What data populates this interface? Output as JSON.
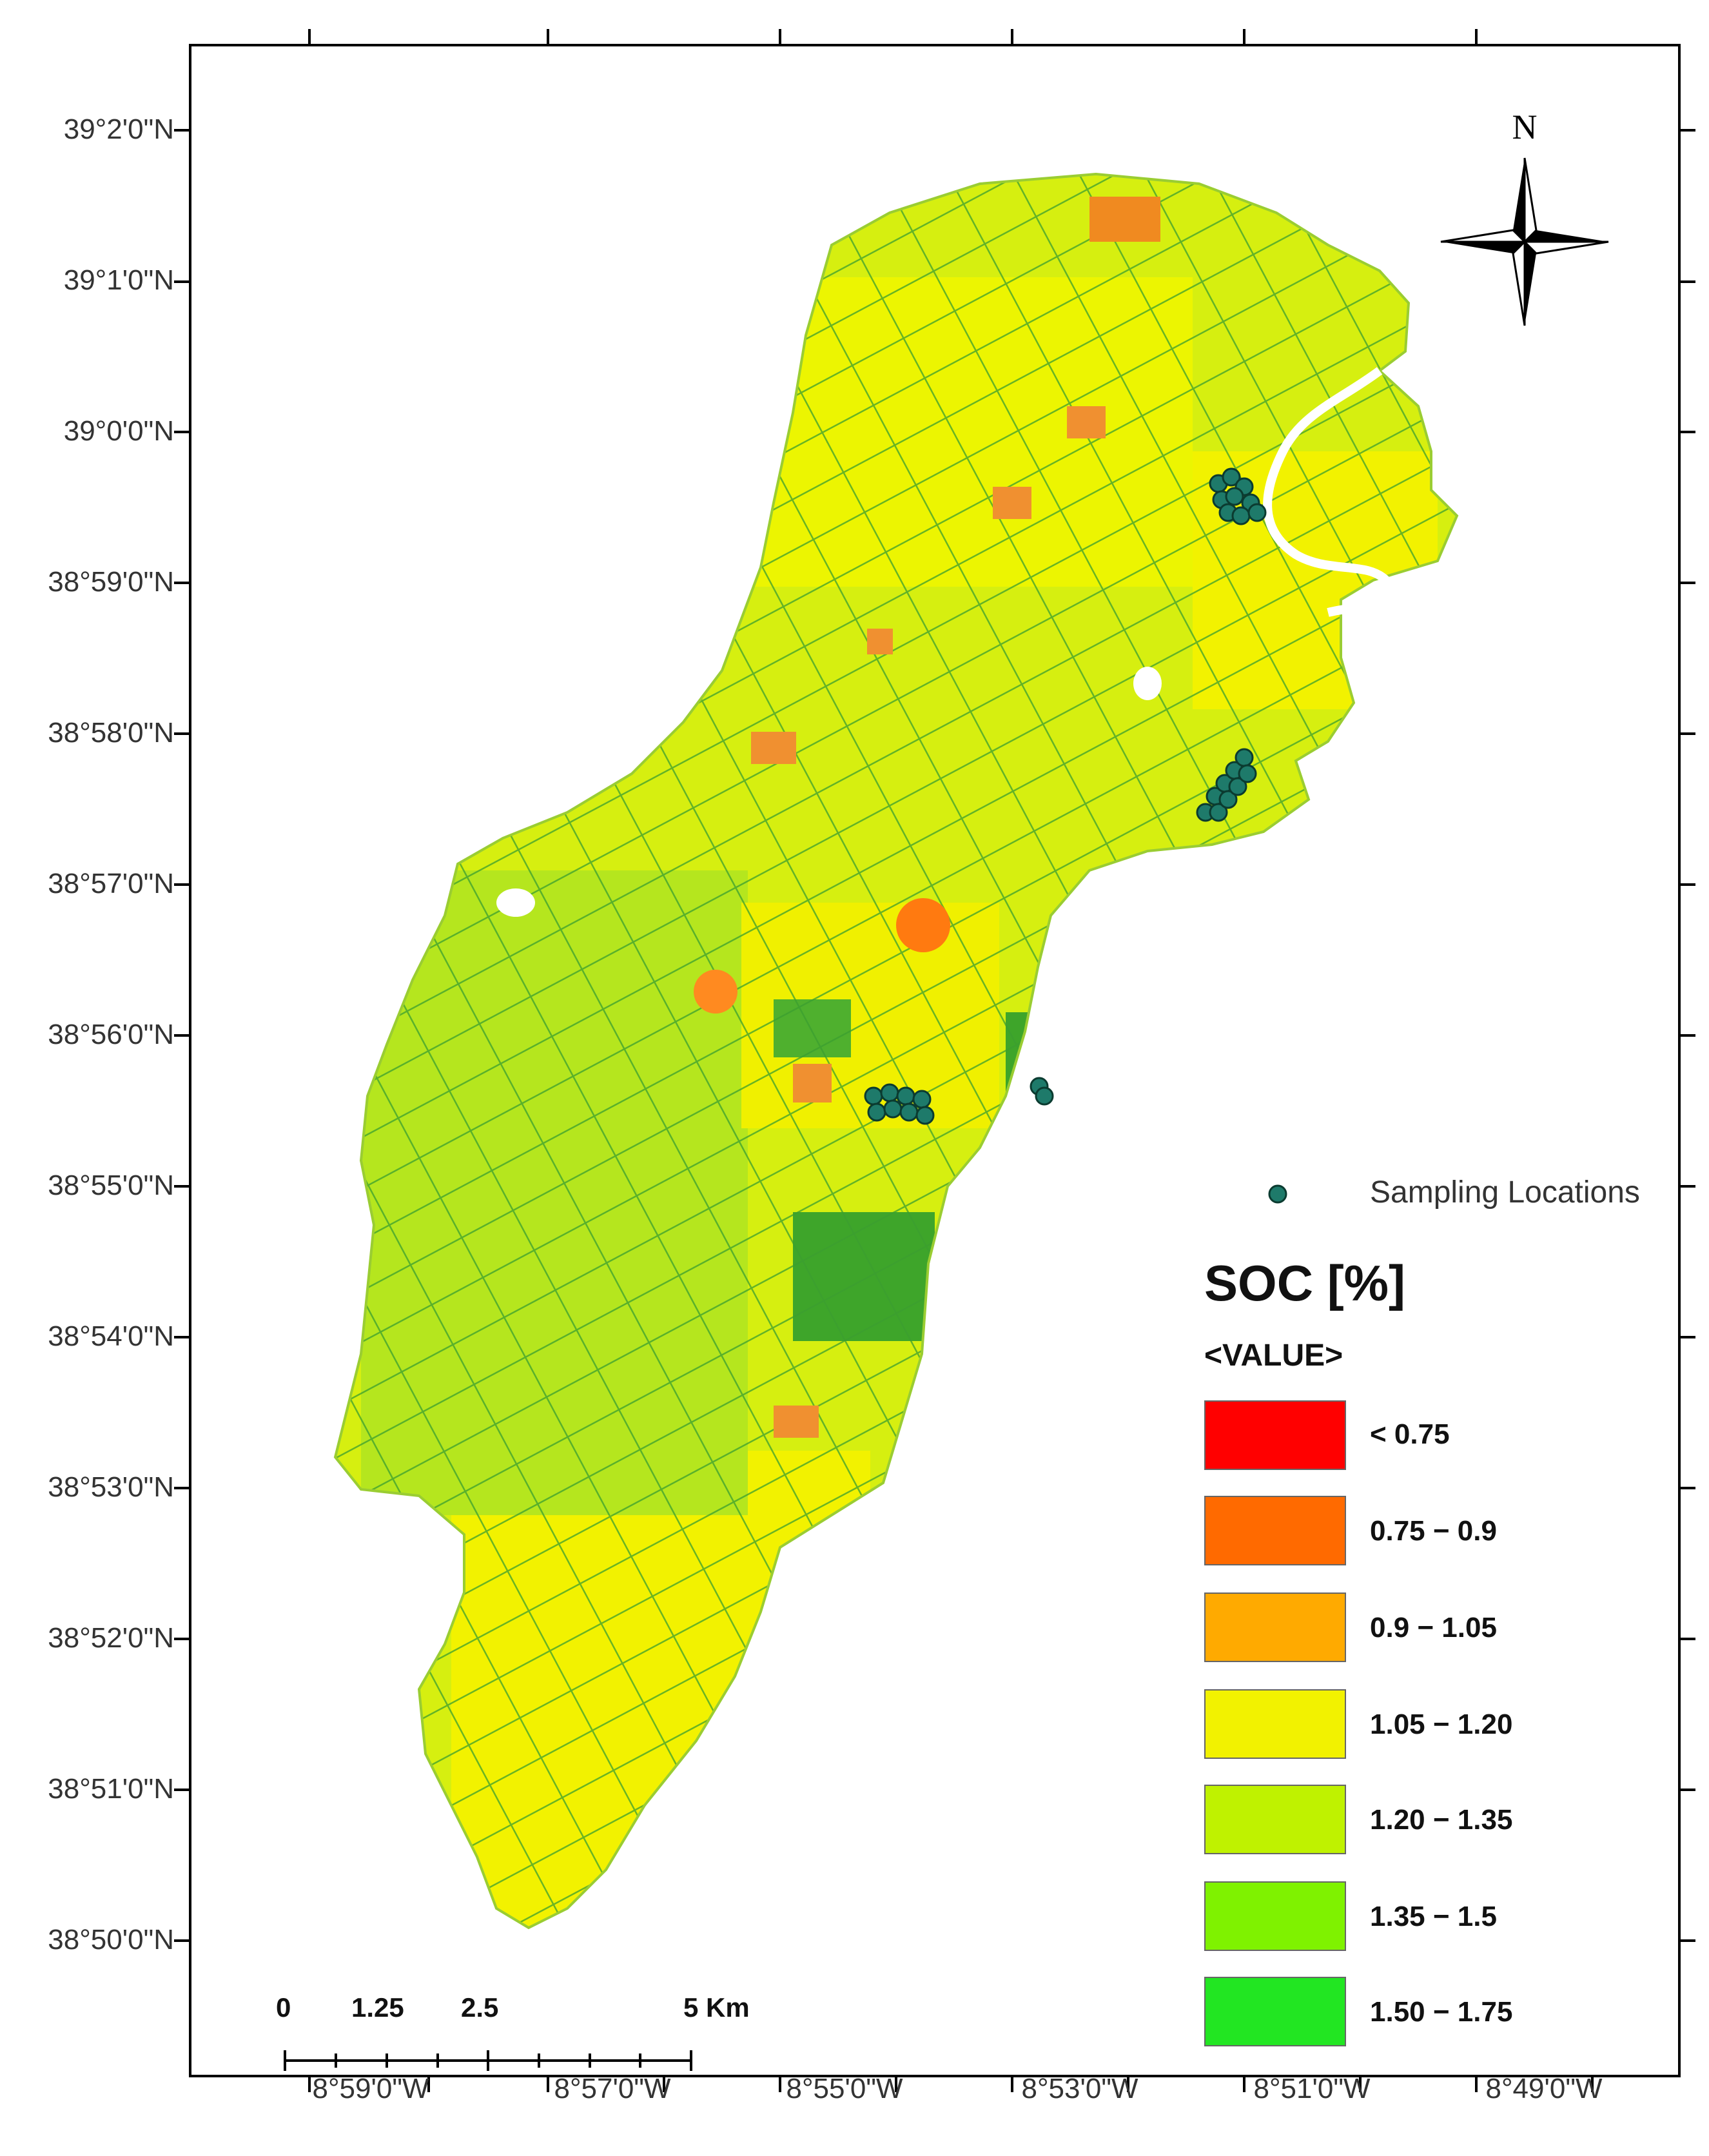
{
  "map": {
    "north_label": "N",
    "latitude_labels": [
      "39°2'0\"N",
      "39°1'0\"N",
      "39°0'0\"N",
      "38°59'0\"N",
      "38°58'0\"N",
      "38°57'0\"N",
      "38°56'0\"N",
      "38°55'0\"N",
      "38°54'0\"N",
      "38°53'0\"N",
      "38°52'0\"N",
      "38°51'0\"N",
      "38°50'0\"N"
    ],
    "longitude_labels": [
      "8°59'0\"W",
      "8°57'0\"W",
      "8°55'0\"W",
      "8°53'0\"W",
      "8°51'0\"W",
      "8°49'0\"W"
    ],
    "sampling_label": "Sampling Locations",
    "colors": {
      "below_075": "#ff0000",
      "c075_09": "#ff6a00",
      "c09_105": "#ffaa00",
      "c105_120": "#f2f200",
      "c120_135": "#bff200",
      "c135_15": "#7ff200",
      "c150_175": "#22e622",
      "field_lines": "#2f9a2f",
      "sampling_point": "#1e7a6a"
    }
  },
  "legend": {
    "title": "SOC [%]",
    "subtitle": "<VALUE>",
    "classes": [
      {
        "label": "< 0.75",
        "color": "#ff0000"
      },
      {
        "label": "0.75 − 0.9",
        "color": "#ff6a00"
      },
      {
        "label": "0.9 − 1.05",
        "color": "#ffaa00"
      },
      {
        "label": "1.05 − 1.20",
        "color": "#f2f200"
      },
      {
        "label": "1.20 − 1.35",
        "color": "#bff200"
      },
      {
        "label": "1.35 − 1.5",
        "color": "#7ff200"
      },
      {
        "label": "1.50 − 1.75",
        "color": "#22e622"
      }
    ]
  },
  "scale_bar": {
    "labels": [
      "0",
      "1.25",
      "2.5",
      "5 Km"
    ]
  }
}
